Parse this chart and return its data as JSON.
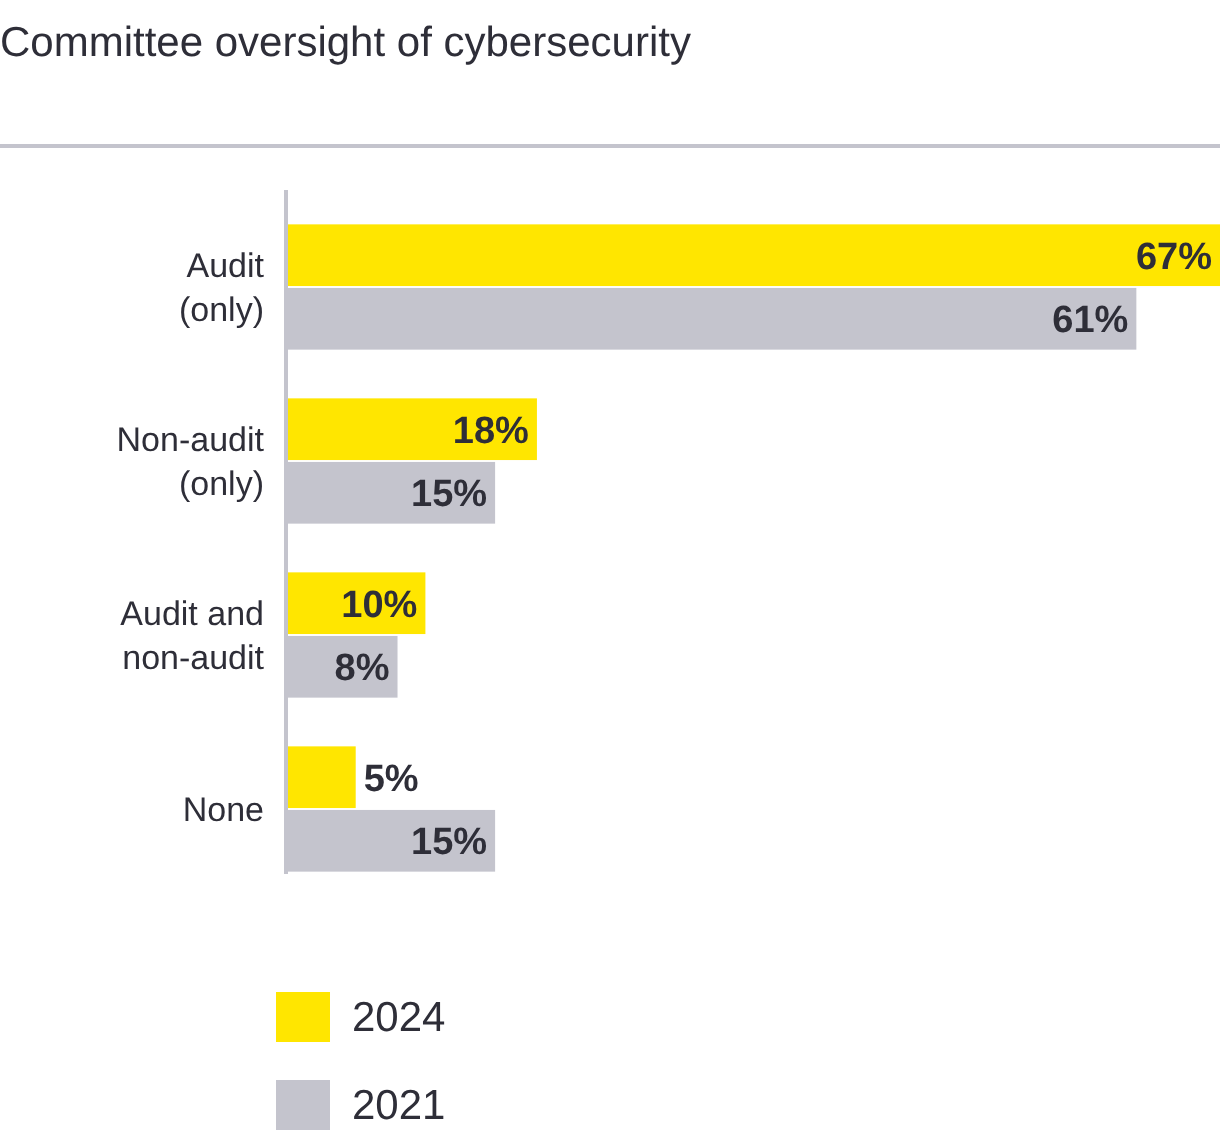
{
  "chart_data": {
    "type": "bar",
    "orientation": "horizontal",
    "title": "Committee oversight of cybersecurity",
    "categories": [
      "Audit (only)",
      "Non-audit (only)",
      "Audit and non-audit",
      "None"
    ],
    "series": [
      {
        "name": "2024",
        "color": "#ffe600",
        "values": [
          67,
          18,
          10,
          5
        ],
        "value_labels": [
          "67%",
          "18%",
          "10%",
          "5%"
        ]
      },
      {
        "name": "2021",
        "color": "#c4c4cd",
        "values": [
          61,
          15,
          8,
          15
        ],
        "value_labels": [
          "61%",
          "15%",
          "8%",
          "15%"
        ]
      }
    ],
    "legend": "bottom"
  }
}
